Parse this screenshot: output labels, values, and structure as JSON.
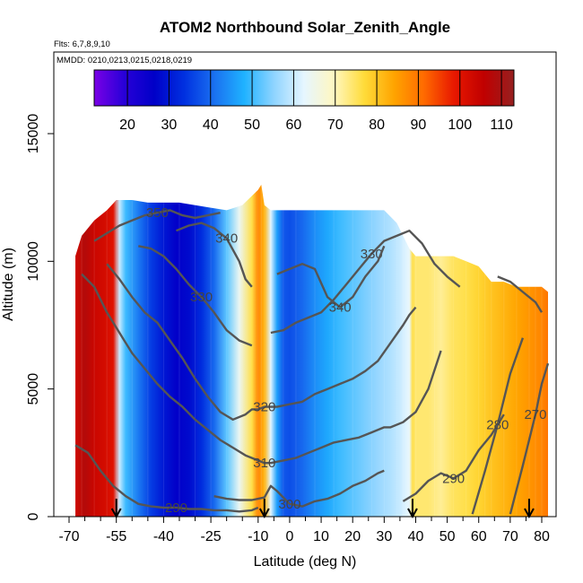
{
  "chart_data": {
    "type": "heatmap",
    "title": "ATOM2 Northbound Solar_Zenith_Angle",
    "subtitle_lines": [
      "Flts: 6,7,8,9,10",
      "MMDD: 0210,0213,0215,0218,0219"
    ],
    "xlabel": "Latitude (deg N)",
    "ylabel": "Altitude (m)",
    "xlim": [
      -70,
      84
    ],
    "ylim": [
      0,
      17500
    ],
    "x_ticks": [
      -70,
      -55,
      -40,
      -25,
      -10,
      0,
      10,
      20,
      30,
      40,
      50,
      60,
      70,
      80
    ],
    "x_tick_labels": [
      "-70",
      "-55",
      "-40",
      "-25",
      "-10",
      "0",
      "10",
      "20",
      "30",
      "40",
      "50",
      "60",
      "70",
      "80"
    ],
    "x_minor_ticks": [
      -65,
      -60,
      -50,
      -45,
      -35,
      -30,
      -20,
      -15,
      -5,
      5,
      15,
      25,
      35,
      45,
      55,
      65,
      75
    ],
    "y_ticks": [
      0,
      5000,
      10000,
      15000
    ],
    "y_tick_labels": [
      "0",
      "5000",
      "10000",
      "15000"
    ],
    "colorbar": {
      "min": 12,
      "max": 113,
      "ticks": [
        20,
        30,
        40,
        50,
        60,
        70,
        80,
        90,
        100,
        110
      ],
      "tick_labels": [
        "20",
        "30",
        "40",
        "50",
        "60",
        "70",
        "80",
        "90",
        "100",
        "110"
      ],
      "colors": [
        "#7a00e6",
        "#2800d8",
        "#0000c8",
        "#0030e0",
        "#1a70f0",
        "#1fb2ff",
        "#8fd4ff",
        "#e6f6ff",
        "#fff7c0",
        "#ffdc3a",
        "#ffa400",
        "#ff6a00",
        "#e81800",
        "#c00000",
        "#962020"
      ]
    },
    "field_sza_vs_latitude": {
      "lat": [
        -68,
        -65,
        -62,
        -58,
        -56,
        -54,
        -52,
        -48,
        -44,
        -40,
        -36,
        -32,
        -28,
        -24,
        -20,
        -16,
        -12,
        -10,
        -8,
        -6,
        -4,
        -2,
        0,
        4,
        8,
        12,
        16,
        20,
        24,
        28,
        30,
        32,
        35,
        37,
        38,
        39,
        40,
        44,
        48,
        52,
        56,
        60,
        64,
        68,
        72,
        76,
        80,
        82
      ],
      "sza": [
        103,
        108,
        104,
        102,
        100,
        60,
        50,
        42,
        35,
        30,
        26,
        28,
        33,
        40,
        52,
        64,
        76,
        88,
        82,
        62,
        46,
        38,
        37,
        40,
        44,
        47,
        50,
        52,
        54,
        56,
        57,
        58,
        60,
        62,
        63,
        76,
        74,
        74,
        72,
        75,
        76,
        78,
        80,
        82,
        84,
        86,
        88,
        90
      ]
    },
    "data_envelope": {
      "lat": [
        -68,
        -66,
        -62,
        -58,
        -55,
        -50,
        -45,
        -40,
        -35,
        -30,
        -25,
        -20,
        -15,
        -10,
        -9,
        -8,
        -6,
        -2,
        2,
        8,
        14,
        20,
        26,
        30,
        34,
        36,
        38,
        40,
        46,
        52,
        56,
        60,
        62,
        64,
        68,
        72,
        76,
        78,
        80,
        82
      ],
      "alt_top": [
        10200,
        11000,
        11600,
        12000,
        12400,
        12400,
        12300,
        12300,
        12300,
        12200,
        12100,
        12000,
        12200,
        12800,
        13000,
        12200,
        12000,
        12000,
        12000,
        12000,
        12000,
        12000,
        12000,
        12000,
        11500,
        11000,
        10500,
        10200,
        10200,
        10200,
        10000,
        9800,
        9500,
        9200,
        9200,
        9000,
        9000,
        9000,
        9000,
        8800
      ]
    },
    "potential_temperature_contours": [
      {
        "label": "290",
        "lat": [
          -68,
          -64,
          -60,
          -56,
          -52,
          -48,
          -44,
          -40,
          -36,
          -32,
          -28,
          -24,
          -20,
          -16,
          -12,
          -10
        ],
        "alt": [
          2800,
          2500,
          1800,
          1200,
          800,
          500,
          400,
          350,
          350,
          300,
          300,
          250,
          250,
          200,
          250,
          350
        ]
      },
      {
        "label": "290",
        "lat": [
          36,
          40,
          44,
          48,
          52,
          56,
          60,
          64,
          68
        ],
        "alt": [
          600,
          900,
          1400,
          1700,
          1500,
          1800,
          2600,
          3200,
          4000
        ]
      },
      {
        "label": "300",
        "lat": [
          -24,
          -20,
          -16,
          -12,
          -10,
          -8,
          -6,
          -4,
          0,
          4,
          8,
          12,
          16,
          20,
          24,
          28,
          30
        ],
        "alt": [
          800,
          700,
          650,
          650,
          700,
          750,
          1200,
          1000,
          500,
          400,
          600,
          700,
          900,
          1200,
          1400,
          1700,
          1800
        ]
      },
      {
        "label": "310",
        "lat": [
          -66,
          -62,
          -58,
          -54,
          -50,
          -46,
          -42,
          -38,
          -34,
          -30,
          -26,
          -22,
          -18,
          -14,
          -10,
          -8,
          -6,
          -2,
          2,
          6,
          10,
          14,
          18,
          22,
          26,
          30,
          32,
          36,
          40,
          44,
          48
        ],
        "alt": [
          9500,
          9000,
          8000,
          7200,
          6400,
          5800,
          5200,
          4700,
          4300,
          3800,
          3400,
          3000,
          2700,
          2400,
          2200,
          2100,
          2100,
          2200,
          2300,
          2500,
          2700,
          2900,
          3000,
          3100,
          3300,
          3500,
          3500,
          3700,
          4100,
          5000,
          6500
        ]
      },
      {
        "label": "320",
        "lat": [
          -58,
          -54,
          -50,
          -46,
          -42,
          -38,
          -34,
          -30,
          -26,
          -22,
          -18,
          -14,
          -12,
          -10,
          -8,
          -4,
          0,
          4,
          8,
          12,
          16,
          20,
          24,
          28,
          32,
          36,
          38,
          40
        ],
        "alt": [
          9900,
          9300,
          8600,
          8000,
          7600,
          6900,
          6200,
          5400,
          4700,
          4100,
          3800,
          4000,
          4200,
          4200,
          4300,
          4300,
          4400,
          4500,
          4800,
          5000,
          5200,
          5400,
          5700,
          6100,
          6800,
          7500,
          7900,
          8200
        ]
      },
      {
        "label": "330",
        "lat": [
          -48,
          -44,
          -40,
          -36,
          -32,
          -28,
          -24,
          -20,
          -16,
          -12
        ],
        "alt": [
          10600,
          10500,
          10200,
          9700,
          9100,
          8600,
          8000,
          7300,
          6900,
          6700
        ]
      },
      {
        "label": "330",
        "lat": [
          -6,
          -2,
          2,
          6,
          10,
          14,
          18,
          22,
          26,
          30,
          34,
          38,
          42,
          46,
          50,
          54
        ],
        "alt": [
          7200,
          7300,
          7600,
          7800,
          8000,
          8500,
          9100,
          9700,
          10300,
          10800,
          11000,
          11200,
          10700,
          9900,
          9400,
          9000
        ]
      },
      {
        "label": "340",
        "lat": [
          -36,
          -32,
          -28,
          -24,
          -20,
          -16,
          -14,
          -12
        ],
        "alt": [
          11200,
          11400,
          11500,
          11300,
          10900,
          10000,
          9300,
          9000
        ]
      },
      {
        "label": "340",
        "lat": [
          -4,
          0,
          4,
          8,
          12,
          16,
          20,
          24,
          28,
          30
        ],
        "alt": [
          9500,
          9700,
          9900,
          9700,
          8600,
          8200,
          8600,
          9400,
          10000,
          10600
        ]
      },
      {
        "label": "350",
        "lat": [
          -62,
          -58,
          -54,
          -50,
          -46,
          -42,
          -38,
          -34,
          -30,
          -26,
          -22
        ],
        "alt": [
          10800,
          11100,
          11400,
          11600,
          11800,
          11900,
          12000,
          11800,
          11700,
          11800,
          11900
        ]
      },
      {
        "label": "",
        "lat": [
          66,
          70,
          74,
          78,
          80
        ],
        "alt": [
          9400,
          9200,
          8800,
          8400,
          8000
        ]
      },
      {
        "label": "280",
        "lat": [
          58,
          62,
          66,
          70,
          74
        ],
        "alt": [
          100,
          1800,
          3600,
          5600,
          7000
        ]
      },
      {
        "label": "270",
        "lat": [
          70,
          74,
          78,
          80,
          82
        ],
        "alt": [
          100,
          2000,
          4000,
          5200,
          6000
        ]
      }
    ],
    "arrow_markers_lat": [
      -55,
      -8,
      39,
      76
    ]
  }
}
